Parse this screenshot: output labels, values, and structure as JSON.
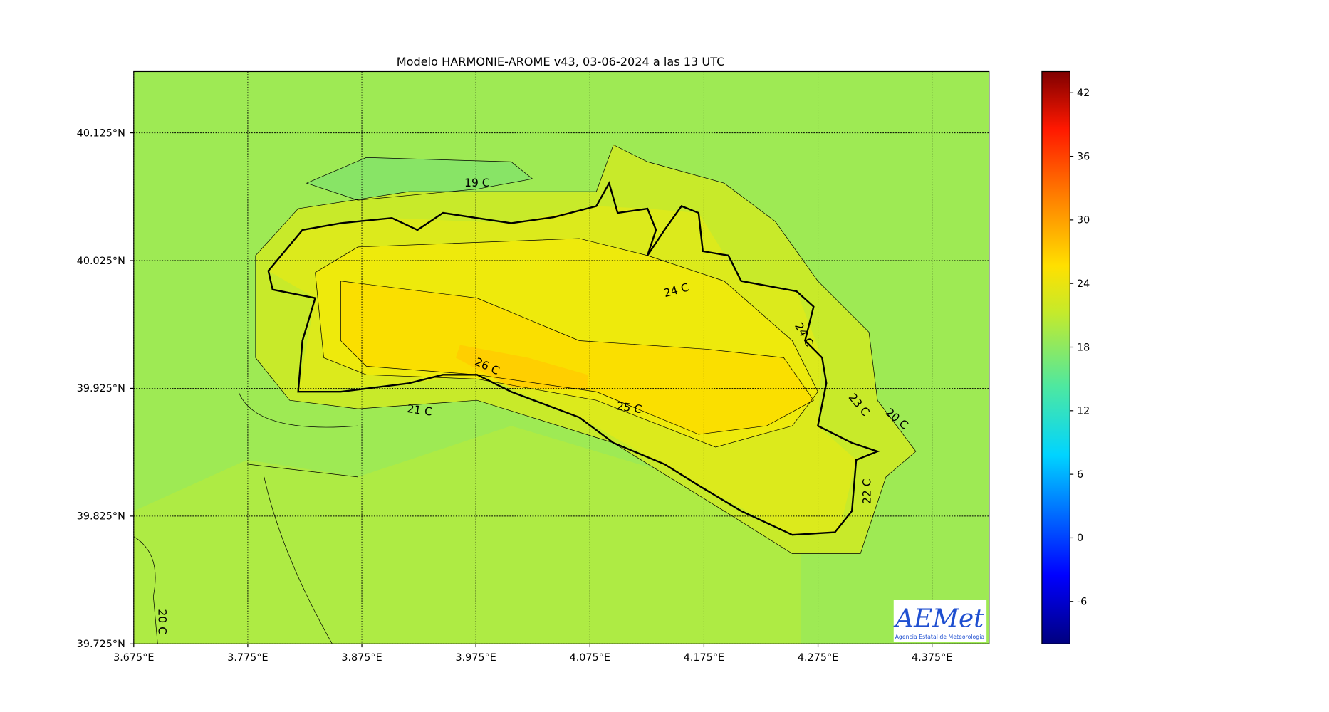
{
  "title": "Modelo HARMONIE-AROME v43, 03-06-2024 a las 13 UTC",
  "map": {
    "xlim": [
      3.675,
      4.425
    ],
    "ylim": [
      39.725,
      40.173
    ],
    "xticks": [
      {
        "value": 3.675,
        "label": "3.675°E"
      },
      {
        "value": 3.775,
        "label": "3.775°E"
      },
      {
        "value": 3.875,
        "label": "3.875°E"
      },
      {
        "value": 3.975,
        "label": "3.975°E"
      },
      {
        "value": 4.075,
        "label": "4.075°E"
      },
      {
        "value": 4.175,
        "label": "4.175°E"
      },
      {
        "value": 4.275,
        "label": "4.275°E"
      },
      {
        "value": 4.375,
        "label": "4.375°E"
      }
    ],
    "yticks": [
      {
        "value": 39.725,
        "label": "39.725°N"
      },
      {
        "value": 39.825,
        "label": "39.825°N"
      },
      {
        "value": 39.925,
        "label": "39.925°N"
      },
      {
        "value": 40.025,
        "label": "40.025°N"
      },
      {
        "value": 40.125,
        "label": "40.125°N"
      }
    ],
    "grid": true,
    "contour_labels": [
      "19 C",
      "24 C",
      "24 C",
      "26 C",
      "25 C",
      "21 C",
      "23 C",
      "20 C",
      "22 C",
      "20 C"
    ]
  },
  "colorbar": {
    "clim": [
      -10,
      44
    ],
    "ticks": [
      -6,
      0,
      6,
      12,
      18,
      24,
      30,
      36,
      42
    ]
  },
  "logo": {
    "name": "AEMet",
    "subtitle": "Agencia Estatal de Meteorología"
  }
}
